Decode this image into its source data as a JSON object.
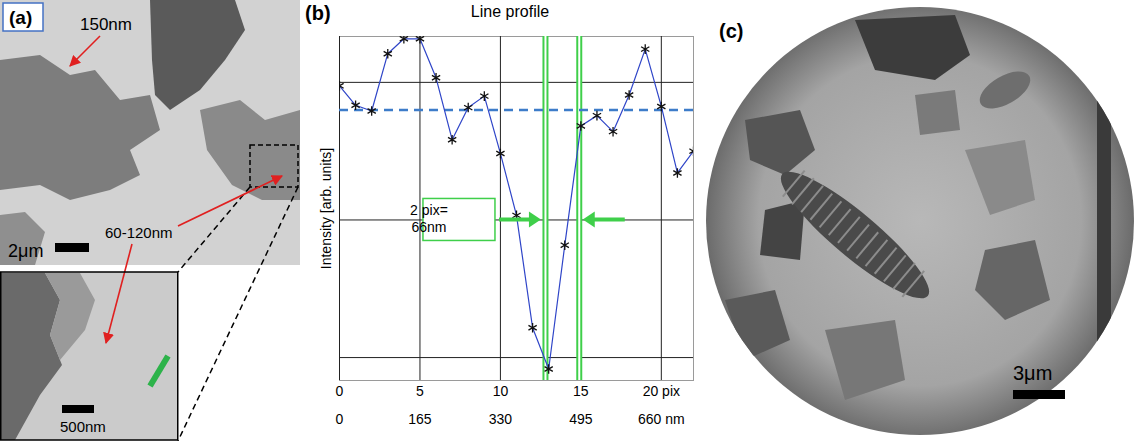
{
  "chart_data": {
    "type": "line",
    "panel_label": "(b)",
    "title": "Line profile",
    "y_label": "Intensity [arb. units]",
    "x": [
      0,
      1,
      2,
      3,
      4,
      5,
      6,
      7,
      8,
      9,
      10,
      11,
      12,
      13,
      14,
      15,
      16,
      17,
      18,
      19,
      20,
      21,
      22
    ],
    "values": [
      25.7,
      24,
      23.5,
      28.5,
      29.8,
      29.8,
      26.4,
      21,
      23.8,
      24.8,
      19.8,
      14.4,
      4.6,
      1,
      11.8,
      22.2,
      23.1,
      21.7,
      24.9,
      28.9,
      23.9,
      18.1,
      20
    ],
    "color": "#2f45c8",
    "marker": "asterisk",
    "xlim": [
      0,
      22
    ],
    "xticks": [
      0,
      5,
      10,
      15,
      {
        "value": 20,
        "label": "20 pix"
      }
    ],
    "x2lim": [
      0,
      726
    ],
    "x2ticks": [
      0,
      165,
      330,
      495,
      {
        "value": 660,
        "label": "660 nm"
      }
    ],
    "ylim": [
      0,
      30
    ],
    "yticks": [
      2,
      14,
      26
    ],
    "grid": true,
    "tick_labels": "x",
    "reference_line": {
      "value": 23.6,
      "color": "#3d7cc9",
      "line_style": "dashed"
    },
    "width_markers": {
      "x": [
        12.8,
        14.9
      ],
      "y": 14,
      "color": "#3fcf4a",
      "label": [
        "2 pix=",
        "66nm"
      ]
    }
  },
  "panels": [
    {
      "label": "(a)",
      "annotations": [
        "150nm",
        "60-120nm"
      ],
      "scale_bar": "2μm",
      "inset": {
        "scale_bar": "500nm"
      }
    },
    {
      "label": "(c)",
      "scale_bar": "3μm"
    }
  ]
}
